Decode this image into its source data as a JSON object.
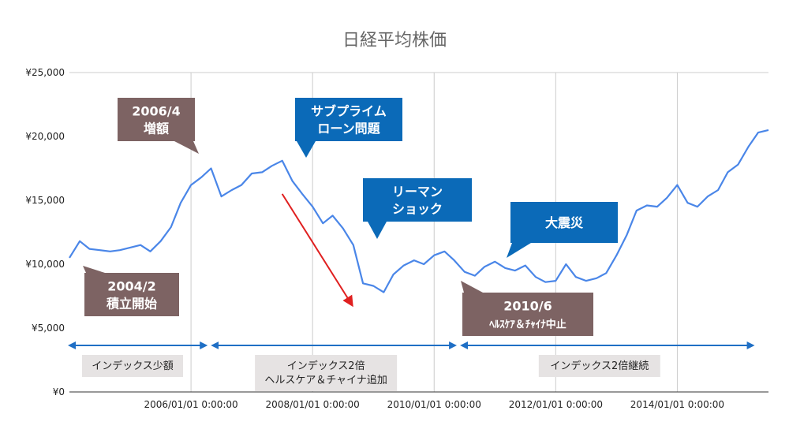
{
  "chart_data": {
    "type": "line",
    "title": "日経平均株価",
    "ylim": [
      0,
      25000
    ],
    "y_ticks": [
      "¥0",
      "¥5,000",
      "¥10,000",
      "¥15,000",
      "¥20,000",
      "¥25,000"
    ],
    "y_tick_values": [
      0,
      5000,
      10000,
      15000,
      20000,
      25000
    ],
    "x_ticks": [
      "2006/01/01 0:00:00",
      "2008/01/01 0:00:00",
      "2010/01/01 0:00:00",
      "2012/01/01 0:00:00",
      "2014/01/01 0:00:00"
    ],
    "x_tick_values": [
      2006.0,
      2008.0,
      2010.0,
      2012.0,
      2014.0
    ],
    "xlim": [
      2004.0,
      2015.5
    ],
    "grid": "vertical",
    "series": [
      {
        "color": "#4a86e8",
        "x": [
          2004.0,
          2004.17,
          2004.33,
          2004.5,
          2004.67,
          2004.83,
          2005.0,
          2005.17,
          2005.33,
          2005.5,
          2005.67,
          2005.83,
          2006.0,
          2006.17,
          2006.33,
          2006.5,
          2006.67,
          2006.83,
          2007.0,
          2007.17,
          2007.33,
          2007.5,
          2007.67,
          2007.83,
          2008.0,
          2008.17,
          2008.33,
          2008.5,
          2008.67,
          2008.83,
          2009.0,
          2009.17,
          2009.33,
          2009.5,
          2009.67,
          2009.83,
          2010.0,
          2010.17,
          2010.33,
          2010.5,
          2010.67,
          2010.83,
          2011.0,
          2011.17,
          2011.33,
          2011.5,
          2011.67,
          2011.83,
          2012.0,
          2012.17,
          2012.33,
          2012.5,
          2012.67,
          2012.83,
          2013.0,
          2013.17,
          2013.33,
          2013.5,
          2013.67,
          2013.83,
          2014.0,
          2014.17,
          2014.33,
          2014.5,
          2014.67,
          2014.83,
          2015.0,
          2015.17,
          2015.33,
          2015.5
        ],
        "values": [
          10500,
          11800,
          11200,
          11100,
          11000,
          11100,
          11300,
          11500,
          11000,
          11800,
          12900,
          14800,
          16200,
          16800,
          17500,
          15300,
          15800,
          16200,
          17100,
          17200,
          17700,
          18100,
          16500,
          15500,
          14500,
          13200,
          13800,
          12800,
          11500,
          8500,
          8300,
          7800,
          9200,
          9900,
          10300,
          10000,
          10700,
          11000,
          10300,
          9400,
          9100,
          9800,
          10200,
          9700,
          9500,
          9900,
          9000,
          8600,
          8700,
          10000,
          9000,
          8700,
          8900,
          9300,
          10700,
          12300,
          14200,
          14600,
          14500,
          15200,
          16200,
          14800,
          14500,
          15300,
          15800,
          17200,
          17800,
          19200,
          20300,
          20500
        ]
      }
    ],
    "annotations": [
      {
        "text": [
          "2006/4",
          "増額"
        ],
        "color": "#7d6363",
        "x": 2006.3,
        "y": 17500
      },
      {
        "text": [
          "2004/2",
          "積立開始"
        ],
        "color": "#7d6363",
        "x": 2004.1,
        "y": 10500
      },
      {
        "text": [
          "サブプライム",
          "ローン問題"
        ],
        "color": "#0b6ab8",
        "x": 2007.95,
        "y": 18100
      },
      {
        "text": [
          "リーマン",
          "ショック"
        ],
        "color": "#0b6ab8",
        "x": 2009.3,
        "y": 12300
      },
      {
        "text": [
          "大震災"
        ],
        "color": "#0b6ab8",
        "x": 2011.2,
        "y": 10200
      },
      {
        "text": [
          "2010/6",
          "ﾍﾙｽｹｱ＆ﾁｬｲﾅ中止"
        ],
        "color": "#7d6363",
        "x": 2010.5,
        "y": 8800
      }
    ],
    "periods": [
      {
        "label": [
          "インデックス少額"
        ],
        "start": 2004.0,
        "end": 2006.3
      },
      {
        "label": [
          "インデックス2倍",
          "ヘルスケア＆チャイナ追加"
        ],
        "start": 2006.3,
        "end": 2010.4
      },
      {
        "label": [
          "インデックス2倍継続"
        ],
        "start": 2010.4,
        "end": 2015.3
      }
    ],
    "trend_arrow": {
      "color": "#e02020",
      "from": [
        2007.5,
        15500
      ],
      "to": [
        2008.65,
        6800
      ]
    }
  }
}
